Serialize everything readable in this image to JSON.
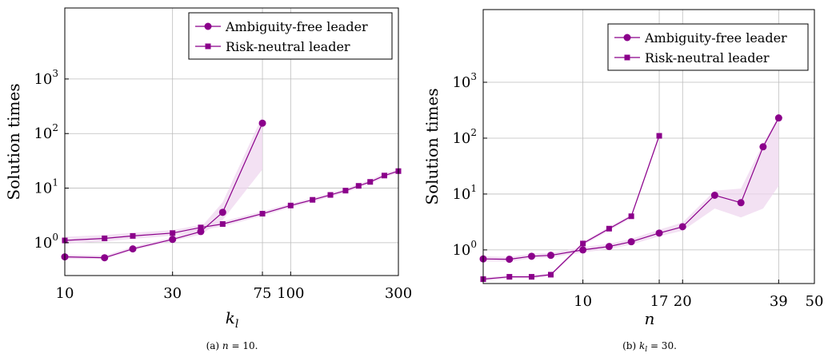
{
  "colors": {
    "series": "#8B008B",
    "band": "#EFD7EF",
    "grid": "#BDBDBD",
    "axis": "#000000"
  },
  "chart_data": [
    {
      "type": "line",
      "caption": "(a) n = 10.",
      "caption_prefix": "(a)",
      "caption_var": "n",
      "caption_value": "= 10.",
      "xlabel": "k",
      "xlabel_sub": "l",
      "ylabel": "Solution times",
      "xscale": "log",
      "yscale": "log",
      "xlim": [
        10,
        300
      ],
      "ylim": [
        0.25,
        20000
      ],
      "grid": true,
      "legend_position": "top-right",
      "xticks": [
        {
          "value": 10,
          "label": "10"
        },
        {
          "value": 30,
          "label": "30"
        },
        {
          "value": 75,
          "label": "75"
        },
        {
          "value": 100,
          "label": "100"
        },
        {
          "value": 300,
          "label": "300"
        }
      ],
      "yticks": [
        {
          "value": 1,
          "base": "10",
          "exp": "0"
        },
        {
          "value": 10,
          "base": "10",
          "exp": "1"
        },
        {
          "value": 100,
          "base": "10",
          "exp": "2"
        },
        {
          "value": 1000,
          "base": "10",
          "exp": "3"
        }
      ],
      "series": [
        {
          "name": "Ambiguity-free leader",
          "marker": "circle",
          "x": [
            10,
            15,
            20,
            30,
            40,
            50,
            75
          ],
          "y": [
            0.55,
            0.53,
            0.77,
            1.15,
            1.6,
            3.6,
            155
          ],
          "y_low": [
            0.5,
            0.5,
            0.72,
            1.08,
            1.4,
            2.6,
            22
          ],
          "y_high": [
            0.6,
            0.58,
            0.84,
            1.25,
            1.9,
            5.5,
            210
          ]
        },
        {
          "name": "Risk-neutral leader",
          "marker": "square",
          "x": [
            10,
            15,
            20,
            30,
            40,
            50,
            75,
            100,
            125,
            150,
            175,
            200,
            225,
            260,
            300
          ],
          "y": [
            1.1,
            1.2,
            1.33,
            1.5,
            1.9,
            2.2,
            3.4,
            4.8,
            6.1,
            7.5,
            9.0,
            11.0,
            13.0,
            17.0,
            20.5
          ],
          "y_low": [
            0.95,
            1.05,
            1.18,
            1.34,
            1.7,
            1.98,
            3.1,
            4.4,
            5.6,
            6.9,
            8.3,
            10.1,
            12.0,
            15.6,
            19.0
          ],
          "y_high": [
            1.28,
            1.38,
            1.52,
            1.7,
            2.12,
            2.45,
            3.75,
            5.2,
            6.6,
            8.1,
            9.8,
            12.0,
            14.2,
            18.6,
            22.3
          ]
        }
      ]
    },
    {
      "type": "line",
      "caption": "(b) k_l = 30.",
      "caption_prefix": "(b)",
      "caption_var": "k",
      "caption_sub": "l",
      "caption_value": "= 30.",
      "xlabel": "n",
      "ylabel": "Solution times",
      "xscale": "log",
      "yscale": "log",
      "xlim": [
        5,
        50
      ],
      "ylim": [
        0.25,
        20000
      ],
      "grid": true,
      "legend_position": "top-right",
      "xticks": [
        {
          "value": 10,
          "label": "10"
        },
        {
          "value": 17,
          "label": "17"
        },
        {
          "value": 20,
          "label": "20"
        },
        {
          "value": 39,
          "label": "39"
        },
        {
          "value": 50,
          "label": "50"
        }
      ],
      "yticks": [
        {
          "value": 1,
          "base": "10",
          "exp": "0"
        },
        {
          "value": 10,
          "base": "10",
          "exp": "1"
        },
        {
          "value": 100,
          "base": "10",
          "exp": "2"
        },
        {
          "value": 1000,
          "base": "10",
          "exp": "3"
        }
      ],
      "series": [
        {
          "name": "Ambiguity-free leader",
          "marker": "circle",
          "x": [
            5,
            6,
            7,
            8,
            10,
            12,
            14,
            17,
            20,
            25,
            30,
            35,
            39
          ],
          "y": [
            0.69,
            0.68,
            0.77,
            0.8,
            1.0,
            1.15,
            1.4,
            2.0,
            2.6,
            9.5,
            7.0,
            70,
            230
          ],
          "y_low": [
            0.62,
            0.62,
            0.7,
            0.73,
            0.9,
            1.03,
            1.25,
            1.75,
            2.2,
            5.5,
            3.8,
            5.5,
            14
          ],
          "y_high": [
            0.77,
            0.75,
            0.85,
            0.88,
            1.12,
            1.28,
            1.58,
            2.3,
            3.1,
            11.5,
            12.5,
            80,
            250
          ]
        },
        {
          "name": "Risk-neutral leader",
          "marker": "square",
          "x": [
            5,
            6,
            7,
            8,
            10,
            12,
            14,
            17
          ],
          "y": [
            0.3,
            0.33,
            0.33,
            0.36,
            1.3,
            2.4,
            4.0,
            110
          ],
          "y_low": [
            0.28,
            0.31,
            0.31,
            0.34,
            1.2,
            2.2,
            3.7,
            100
          ],
          "y_high": [
            0.32,
            0.35,
            0.35,
            0.38,
            1.4,
            2.6,
            4.3,
            120
          ]
        }
      ]
    }
  ]
}
